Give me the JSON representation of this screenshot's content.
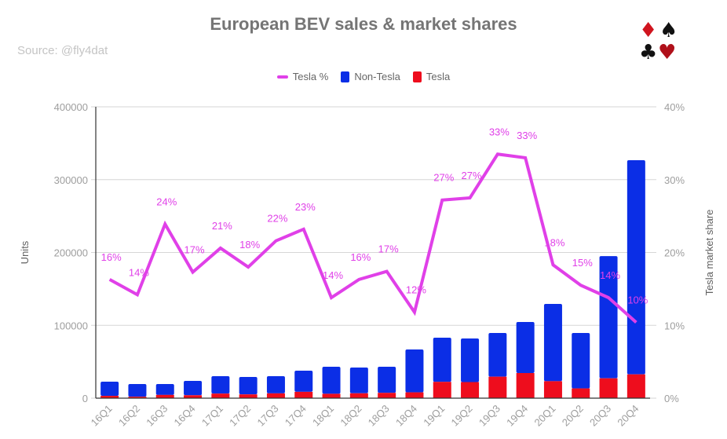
{
  "chart_data": {
    "type": "bar",
    "subtype": "stacked-bar-with-line-secondary-axis",
    "title": "European BEV sales & market shares",
    "subtitle": "Source: @fly4dat",
    "xlabel": "",
    "ylabel": "Units",
    "ylabel_right": "Tesla market share",
    "ylim": [
      0,
      400000
    ],
    "ylim_right": [
      0,
      40
    ],
    "yticks": [
      "0",
      "100000",
      "200000",
      "300000",
      "400000"
    ],
    "yticks_right": [
      "0%",
      "10%",
      "20%",
      "30%",
      "40%"
    ],
    "grid": true,
    "legend_position": "top-center",
    "legend": [
      {
        "name": "Tesla %",
        "kind": "line",
        "color": "#e040e8"
      },
      {
        "name": "Non-Tesla",
        "kind": "bar",
        "color": "#0b2ee6"
      },
      {
        "name": "Tesla",
        "kind": "bar",
        "color": "#ee0d1d"
      }
    ],
    "categories": [
      "16Q1",
      "16Q2",
      "16Q3",
      "16Q4",
      "17Q1",
      "17Q2",
      "17Q3",
      "17Q4",
      "18Q1",
      "18Q2",
      "18Q3",
      "18Q4",
      "19Q1",
      "19Q2",
      "19Q3",
      "19Q4",
      "20Q1",
      "20Q2",
      "20Q3",
      "20Q4"
    ],
    "series": [
      {
        "name": "Tesla",
        "type": "bar",
        "axis": "left",
        "color": "#ee0d1d",
        "values": [
          3200,
          2000,
          4500,
          4000,
          6300,
          5200,
          6600,
          8700,
          6000,
          6700,
          7300,
          8000,
          22400,
          22100,
          29500,
          34500,
          23300,
          13400,
          27300,
          32700
        ]
      },
      {
        "name": "Non-Tesla",
        "type": "bar",
        "axis": "left",
        "color": "#0b2ee6",
        "values": [
          19400,
          17400,
          14900,
          19700,
          23900,
          23900,
          23600,
          29000,
          37100,
          35300,
          35800,
          58800,
          60600,
          59900,
          60000,
          70100,
          106100,
          76100,
          167700,
          294000
        ]
      },
      {
        "name": "Tesla %",
        "type": "line",
        "axis": "right",
        "color": "#e040e8",
        "values": [
          16.3,
          14.2,
          23.9,
          17.3,
          20.6,
          18.0,
          21.6,
          23.2,
          13.8,
          16.3,
          17.4,
          11.8,
          27.2,
          27.5,
          33.5,
          33.0,
          18.3,
          15.5,
          13.8,
          10.4
        ],
        "labels": [
          "16%",
          "14%",
          "24%",
          "17%",
          "21%",
          "18%",
          "22%",
          "23%",
          "14%",
          "16%",
          "17%",
          "12%",
          "27%",
          "27%",
          "33%",
          "33%",
          "18%",
          "15%",
          "14%",
          "10%"
        ]
      }
    ]
  },
  "decor": {
    "suits_icon": [
      {
        "glyph": "♦",
        "color": "#d0141e"
      },
      {
        "glyph": "♠",
        "color": "#111111"
      },
      {
        "glyph": "♣",
        "color": "#111111"
      },
      {
        "glyph": "♥",
        "color": "#b0101a"
      }
    ]
  }
}
